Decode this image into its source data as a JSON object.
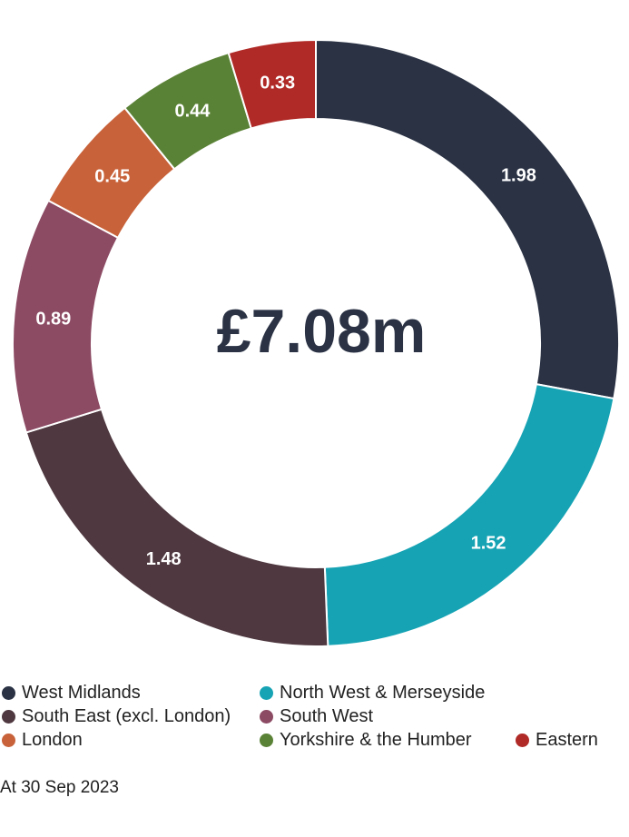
{
  "chart_data": {
    "type": "pie",
    "center_label": "£7.08m",
    "series": [
      {
        "name": "West Midlands",
        "value": 1.98,
        "label": "1.98",
        "color": "#2a3244"
      },
      {
        "name": "North West & Merseyside",
        "value": 1.52,
        "label": "1.52",
        "color": "#16a3b4"
      },
      {
        "name": "South East (excl. London)",
        "value": 1.48,
        "label": "1.48",
        "color": "#4f3840"
      },
      {
        "name": "South West",
        "value": 0.89,
        "label": "0.89",
        "color": "#8c4a63"
      },
      {
        "name": "London",
        "value": 0.45,
        "label": "0.45",
        "color": "#c8623a"
      },
      {
        "name": "Yorkshire & the Humber",
        "value": 0.44,
        "label": "0.44",
        "color": "#5a8236"
      },
      {
        "name": "Eastern",
        "value": 0.33,
        "label": "0.33",
        "color": "#b02a27"
      }
    ],
    "legend_placement": "bottom"
  },
  "footnote": "At 30 Sep 2023"
}
